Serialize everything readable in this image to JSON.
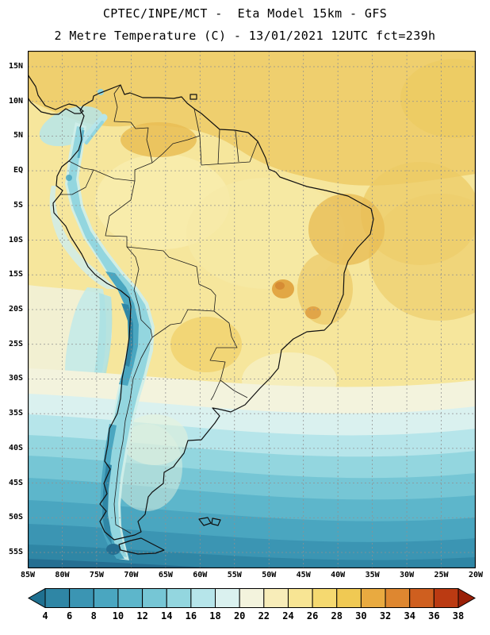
{
  "header": {
    "title_line1": "CPTEC/INPE/MCT -  Eta Model 15km - GFS",
    "title_line2": "2 Metre Temperature (C) - 13/01/2021 12UTC fct=239h"
  },
  "map": {
    "lat_labels": [
      "15N",
      "10N",
      "5N",
      "EQ",
      "5S",
      "10S",
      "15S",
      "20S",
      "25S",
      "30S",
      "35S",
      "40S",
      "45S",
      "50S",
      "55S"
    ],
    "lon_labels": [
      "85W",
      "80W",
      "75W",
      "70W",
      "65W",
      "60W",
      "55W",
      "50W",
      "45W",
      "40W",
      "35W",
      "30W",
      "25W",
      "20W"
    ]
  },
  "colorbar": {
    "tick_labels": [
      "4",
      "6",
      "8",
      "10",
      "12",
      "14",
      "16",
      "18",
      "20",
      "22",
      "24",
      "26",
      "28",
      "30",
      "32",
      "34",
      "36",
      "38"
    ],
    "under_color": "#1f7090",
    "over_color": "#9a1f07",
    "segment_colors": [
      "#2f86a5",
      "#3b95b3",
      "#4aa6c0",
      "#5db6cb",
      "#76c6d5",
      "#93d6df",
      "#b6e5ea",
      "#daf1ef",
      "#f3f3dd",
      "#f8edb9",
      "#f8e594",
      "#f5d970",
      "#f0c953",
      "#e9aa40",
      "#de8730",
      "#cf5f1f",
      "#bb3a12"
    ]
  },
  "chart_data": {
    "type": "heatmap",
    "title": "2 Metre Temperature (C)",
    "subtitle": "CPTEC/INPE/MCT - Eta Model 15km - GFS",
    "valid_time": "13/01/2021 12UTC fct=239h",
    "unit": "C",
    "x_axis": {
      "label": "longitude",
      "ticks": [
        "85W",
        "80W",
        "75W",
        "70W",
        "65W",
        "60W",
        "55W",
        "50W",
        "45W",
        "40W",
        "35W",
        "30W",
        "25W",
        "20W"
      ]
    },
    "y_axis": {
      "label": "latitude",
      "ticks": [
        "15N",
        "10N",
        "5N",
        "EQ",
        "5S",
        "10S",
        "15S",
        "20S",
        "25S",
        "30S",
        "35S",
        "40S",
        "45S",
        "50S",
        "55S"
      ]
    },
    "colorbar_levels": [
      4,
      6,
      8,
      10,
      12,
      14,
      16,
      18,
      20,
      22,
      24,
      26,
      28,
      30,
      32,
      34,
      36,
      38
    ],
    "colorbar_colors": [
      "#1f7090",
      "#2f86a5",
      "#3b95b3",
      "#4aa6c0",
      "#5db6cb",
      "#76c6d5",
      "#93d6df",
      "#b6e5ea",
      "#daf1ef",
      "#f3f3dd",
      "#f8edb9",
      "#f8e594",
      "#f5d970",
      "#f0c953",
      "#e9aa40",
      "#de8730",
      "#cf5f1f",
      "#bb3a12",
      "#9a1f07"
    ],
    "legend_position": "bottom",
    "grid": "dashed 5-degree graticule",
    "field_summary": "Warm (24-30C) tropics over northern South America and adjacent oceans; cold band (8-16C) along the Andes cordillera; progressively colder bands southward over the Southern Ocean reaching 4-8C near 55S"
  }
}
